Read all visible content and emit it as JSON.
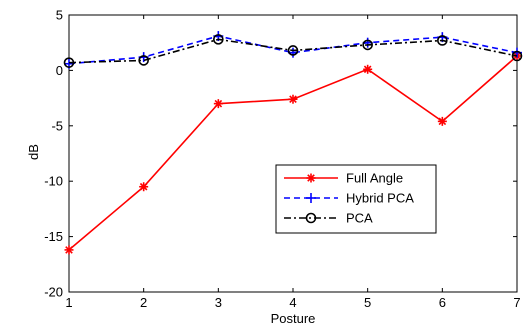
{
  "chart_data": {
    "type": "line",
    "title": "",
    "xlabel": "Posture",
    "ylabel": "dB",
    "xlim": [
      1,
      7
    ],
    "ylim": [
      -20,
      5
    ],
    "x": [
      1,
      2,
      3,
      4,
      5,
      6,
      7
    ],
    "xticks": [
      "1",
      "2",
      "3",
      "4",
      "5",
      "6",
      "7"
    ],
    "yticks": [
      5,
      0,
      -5,
      -10,
      -15,
      -20
    ],
    "ytick_labels": [
      "5",
      "0",
      "-5",
      "-10",
      "-15",
      "-20"
    ],
    "grid": false,
    "legend_placement": "lower-right",
    "series": [
      {
        "name": "Full Angle",
        "values": [
          -16.2,
          -10.5,
          -3.0,
          -2.6,
          0.1,
          -4.6,
          1.3
        ],
        "color": "#ff0000",
        "dash": "solid",
        "marker": "star"
      },
      {
        "name": "Hybrid PCA",
        "values": [
          0.6,
          1.2,
          3.1,
          1.6,
          2.5,
          3.0,
          1.6
        ],
        "color": "#0000ff",
        "dash": "dashed",
        "marker": "plus"
      },
      {
        "name": "PCA",
        "values": [
          0.7,
          0.9,
          2.8,
          1.8,
          2.3,
          2.7,
          1.3
        ],
        "color": "#000000",
        "dash": "dashdot",
        "marker": "circle"
      }
    ]
  }
}
